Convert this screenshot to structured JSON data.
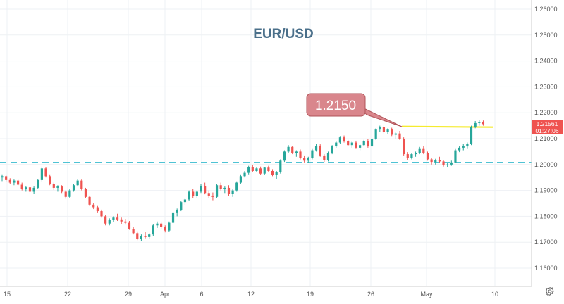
{
  "chart_data": {
    "type": "candlestick",
    "title": "EUR/USD",
    "ylim": [
      1.155,
      1.265
    ],
    "y_ticks": [
      "1.16000",
      "1.17000",
      "1.18000",
      "1.19000",
      "1.20000",
      "1.21000",
      "1.22000",
      "1.23000",
      "1.24000",
      "1.25000",
      "1.26000"
    ],
    "x_ticks": [
      "15",
      "22",
      "29",
      "Apr",
      "6",
      "12",
      "19",
      "26",
      "May",
      "10"
    ],
    "support_level": 1.2008,
    "resistance_level": 1.2147,
    "annotation_label": "1.2150",
    "price_badge": {
      "price": "1.21561",
      "countdown": "01:27:06"
    },
    "grid": true,
    "series": [
      [
        1.195,
        1.1962,
        1.1936,
        1.1955
      ],
      [
        1.1955,
        1.1958,
        1.1935,
        1.194
      ],
      [
        1.194,
        1.1947,
        1.1925,
        1.193
      ],
      [
        1.193,
        1.1942,
        1.192,
        1.1938
      ],
      [
        1.1938,
        1.1945,
        1.1918,
        1.1922
      ],
      [
        1.1922,
        1.193,
        1.19,
        1.1905
      ],
      [
        1.1905,
        1.1918,
        1.1895,
        1.1912
      ],
      [
        1.1912,
        1.192,
        1.1888,
        1.1895
      ],
      [
        1.1895,
        1.1915,
        1.1888,
        1.191
      ],
      [
        1.191,
        1.1945,
        1.1905,
        1.194
      ],
      [
        1.194,
        1.1992,
        1.1935,
        1.1985
      ],
      [
        1.1985,
        1.199,
        1.195,
        1.1955
      ],
      [
        1.1955,
        1.1962,
        1.192,
        1.1925
      ],
      [
        1.1925,
        1.193,
        1.1902,
        1.191
      ],
      [
        1.191,
        1.192,
        1.1895,
        1.1915
      ],
      [
        1.1915,
        1.192,
        1.189,
        1.1895
      ],
      [
        1.1895,
        1.19,
        1.1868,
        1.1875
      ],
      [
        1.1875,
        1.1905,
        1.187,
        1.19
      ],
      [
        1.19,
        1.1925,
        1.1895,
        1.192
      ],
      [
        1.192,
        1.1945,
        1.1915,
        1.1938
      ],
      [
        1.1938,
        1.1942,
        1.19,
        1.1905
      ],
      [
        1.1905,
        1.191,
        1.187,
        1.1875
      ],
      [
        1.1875,
        1.188,
        1.184,
        1.1845
      ],
      [
        1.1845,
        1.1852,
        1.1828,
        1.1835
      ],
      [
        1.1835,
        1.184,
        1.1815,
        1.182
      ],
      [
        1.182,
        1.1826,
        1.1795,
        1.18
      ],
      [
        1.18,
        1.1805,
        1.1765,
        1.1772
      ],
      [
        1.1772,
        1.1792,
        1.1765,
        1.1785
      ],
      [
        1.1785,
        1.18,
        1.1778,
        1.1795
      ],
      [
        1.1795,
        1.181,
        1.1782,
        1.1788
      ],
      [
        1.1788,
        1.1795,
        1.177,
        1.178
      ],
      [
        1.178,
        1.179,
        1.1768,
        1.1775
      ],
      [
        1.1775,
        1.1782,
        1.1748,
        1.1752
      ],
      [
        1.1752,
        1.176,
        1.173,
        1.1735
      ],
      [
        1.1735,
        1.1742,
        1.1708,
        1.1712
      ],
      [
        1.1712,
        1.173,
        1.1705,
        1.1725
      ],
      [
        1.1725,
        1.174,
        1.1715,
        1.172
      ],
      [
        1.172,
        1.1735,
        1.1712,
        1.173
      ],
      [
        1.173,
        1.177,
        1.1725,
        1.1765
      ],
      [
        1.1765,
        1.178,
        1.1755,
        1.1772
      ],
      [
        1.1772,
        1.178,
        1.1752,
        1.1758
      ],
      [
        1.1758,
        1.1765,
        1.1738,
        1.1745
      ],
      [
        1.1745,
        1.178,
        1.174,
        1.1775
      ],
      [
        1.1775,
        1.182,
        1.177,
        1.1815
      ],
      [
        1.1815,
        1.183,
        1.18,
        1.1825
      ],
      [
        1.1825,
        1.186,
        1.182,
        1.1855
      ],
      [
        1.1855,
        1.187,
        1.1842,
        1.1865
      ],
      [
        1.1865,
        1.19,
        1.186,
        1.1895
      ],
      [
        1.1895,
        1.1905,
        1.187,
        1.1878
      ],
      [
        1.1878,
        1.19,
        1.187,
        1.1895
      ],
      [
        1.1895,
        1.1925,
        1.189,
        1.1918
      ],
      [
        1.1918,
        1.193,
        1.1885,
        1.189
      ],
      [
        1.189,
        1.19,
        1.187,
        1.188
      ],
      [
        1.188,
        1.1892,
        1.1862,
        1.1875
      ],
      [
        1.1875,
        1.1925,
        1.187,
        1.192
      ],
      [
        1.192,
        1.193,
        1.19,
        1.1905
      ],
      [
        1.1905,
        1.1915,
        1.189,
        1.191
      ],
      [
        1.191,
        1.192,
        1.188,
        1.1888
      ],
      [
        1.1888,
        1.1905,
        1.1875,
        1.19
      ],
      [
        1.19,
        1.1935,
        1.1895,
        1.193
      ],
      [
        1.193,
        1.1962,
        1.1925,
        1.1955
      ],
      [
        1.1955,
        1.1975,
        1.195,
        1.1968
      ],
      [
        1.1968,
        1.1995,
        1.1962,
        1.199
      ],
      [
        1.199,
        1.1998,
        1.197,
        1.1975
      ],
      [
        1.1975,
        1.199,
        1.197,
        1.1985
      ],
      [
        1.1985,
        1.1992,
        1.196,
        1.1965
      ],
      [
        1.1965,
        1.199,
        1.196,
        1.1988
      ],
      [
        1.1988,
        1.1995,
        1.197,
        1.1975
      ],
      [
        1.1975,
        1.1982,
        1.1955,
        1.196
      ],
      [
        1.196,
        1.1975,
        1.1945,
        1.197
      ],
      [
        1.197,
        1.202,
        1.1965,
        1.2015
      ],
      [
        1.2015,
        1.2055,
        1.201,
        1.205
      ],
      [
        1.205,
        1.2075,
        1.2045,
        1.2068
      ],
      [
        1.2068,
        1.2072,
        1.204,
        1.2045
      ],
      [
        1.2045,
        1.2055,
        1.203,
        1.205
      ],
      [
        1.205,
        1.2058,
        1.202,
        1.2025
      ],
      [
        1.2025,
        1.2035,
        1.2008,
        1.2015
      ],
      [
        1.2015,
        1.203,
        1.2005,
        1.2025
      ],
      [
        1.2025,
        1.206,
        1.202,
        1.2055
      ],
      [
        1.2055,
        1.208,
        1.205,
        1.2072
      ],
      [
        1.2072,
        1.2078,
        1.203,
        1.2035
      ],
      [
        1.2035,
        1.204,
        1.201,
        1.2018
      ],
      [
        1.2018,
        1.205,
        1.2012,
        1.2045
      ],
      [
        1.2045,
        1.2075,
        1.204,
        1.207
      ],
      [
        1.207,
        1.209,
        1.2065,
        1.2085
      ],
      [
        1.2085,
        1.211,
        1.208,
        1.2105
      ],
      [
        1.2105,
        1.2112,
        1.2085,
        1.209
      ],
      [
        1.209,
        1.2095,
        1.207,
        1.2075
      ],
      [
        1.2075,
        1.209,
        1.2065,
        1.2085
      ],
      [
        1.2085,
        1.2092,
        1.206,
        1.2065
      ],
      [
        1.2065,
        1.208,
        1.2055,
        1.2075
      ],
      [
        1.2075,
        1.2095,
        1.207,
        1.209
      ],
      [
        1.209,
        1.2098,
        1.2065,
        1.207
      ],
      [
        1.207,
        1.2105,
        1.2065,
        1.21
      ],
      [
        1.21,
        1.214,
        1.2095,
        1.2135
      ],
      [
        1.2135,
        1.215,
        1.2125,
        1.2145
      ],
      [
        1.2145,
        1.215,
        1.212,
        1.2125
      ],
      [
        1.2125,
        1.214,
        1.2118,
        1.2135
      ],
      [
        1.2135,
        1.2142,
        1.211,
        1.2115
      ],
      [
        1.2115,
        1.2125,
        1.21,
        1.212
      ],
      [
        1.212,
        1.213,
        1.2095,
        1.21
      ],
      [
        1.21,
        1.2105,
        1.2035,
        1.204
      ],
      [
        1.204,
        1.2048,
        1.2018,
        1.2025
      ],
      [
        1.2025,
        1.2045,
        1.202,
        1.204
      ],
      [
        1.204,
        1.205,
        1.203,
        1.2045
      ],
      [
        1.2045,
        1.2068,
        1.204,
        1.206
      ],
      [
        1.206,
        1.207,
        1.204,
        1.2045
      ],
      [
        1.2045,
        1.205,
        1.2015,
        1.202
      ],
      [
        1.202,
        1.2025,
        1.2,
        1.201
      ],
      [
        1.201,
        1.2022,
        1.2,
        1.2018
      ],
      [
        1.2018,
        1.203,
        1.2005,
        1.2012
      ],
      [
        1.2012,
        1.2018,
        1.1992,
        1.1998
      ],
      [
        1.1998,
        1.2005,
        1.199,
        1.2
      ],
      [
        1.2,
        1.2015,
        1.1995,
        1.2008
      ],
      [
        1.2008,
        1.206,
        1.2005,
        1.2055
      ],
      [
        1.2055,
        1.207,
        1.2048,
        1.2065
      ],
      [
        1.2065,
        1.208,
        1.2055,
        1.207
      ],
      [
        1.207,
        1.2085,
        1.206,
        1.208
      ],
      [
        1.208,
        1.215,
        1.2075,
        1.2145
      ],
      [
        1.2145,
        1.2168,
        1.214,
        1.216
      ],
      [
        1.216,
        1.2172,
        1.215,
        1.2165
      ],
      [
        1.2165,
        1.217,
        1.215,
        1.2156
      ]
    ]
  }
}
